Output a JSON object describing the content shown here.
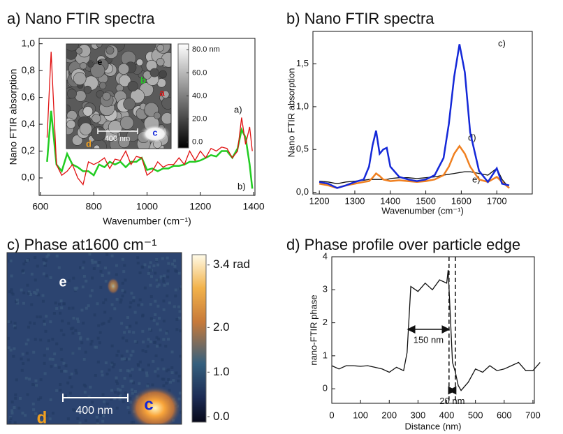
{
  "chart_data": [
    {
      "type": "line",
      "title": "a) Nano FTIR spectra",
      "xlabel": "Wavenumber (cm⁻¹)",
      "ylabel": "Nano FTIR absorption",
      "x": [
        625,
        640,
        660,
        680,
        700,
        720,
        740,
        760,
        780,
        800,
        820,
        840,
        860,
        880,
        900,
        920,
        940,
        960,
        980,
        1000,
        1020,
        1040,
        1060,
        1080,
        1100,
        1120,
        1140,
        1160,
        1180,
        1200,
        1220,
        1240,
        1260,
        1280,
        1300,
        1320,
        1340,
        1355,
        1370,
        1385,
        1395
      ],
      "series": [
        {
          "name": "a)",
          "color": "#e01010",
          "values": [
            0.3,
            0.94,
            0.1,
            0.02,
            0.05,
            0.1,
            0.0,
            -0.05,
            0.12,
            0.1,
            0.12,
            0.15,
            0.07,
            0.14,
            0.13,
            0.2,
            0.1,
            0.16,
            0.15,
            0.02,
            0.05,
            0.12,
            0.08,
            0.1,
            0.1,
            0.15,
            0.1,
            0.2,
            0.13,
            0.2,
            0.15,
            0.22,
            0.2,
            0.23,
            0.22,
            0.15,
            0.2,
            0.45,
            0.25,
            0.38,
            0.2
          ]
        },
        {
          "name": "b)",
          "color": "#22cc22",
          "values": [
            0.12,
            0.5,
            0.1,
            0.05,
            0.18,
            0.1,
            0.08,
            0.05,
            0.05,
            0.02,
            0.1,
            0.08,
            0.12,
            0.1,
            0.12,
            0.08,
            0.12,
            0.12,
            0.15,
            0.06,
            0.07,
            0.05,
            0.07,
            0.07,
            0.09,
            0.09,
            0.1,
            0.12,
            0.12,
            0.13,
            0.15,
            0.17,
            0.16,
            0.2,
            0.2,
            0.15,
            0.22,
            0.36,
            0.3,
            0.1,
            -0.08
          ]
        }
      ],
      "xlim": [
        595,
        1405
      ],
      "xticks": [
        600,
        800,
        1000,
        1200,
        1400
      ],
      "ylim": [
        -0.13,
        1.04
      ],
      "yticks": [
        {
          "value": 0,
          "label": "0,0"
        },
        {
          "value": 0.2,
          "label": "0,2"
        },
        {
          "value": 0.4,
          "label": "0,4"
        },
        {
          "value": 0.6,
          "label": "0,6"
        },
        {
          "value": 0.8,
          "label": "0,8"
        },
        {
          "value": 1.0,
          "label": "1,0"
        }
      ],
      "inset": {
        "clim": [
          -5,
          85
        ],
        "cticks": [
          {
            "value": 80,
            "label": "80.0 nm"
          },
          {
            "value": 60,
            "label": "60.0"
          },
          {
            "value": 40,
            "label": "40.0"
          },
          {
            "value": 20,
            "label": "20.0"
          },
          {
            "value": 0,
            "label": "0.0"
          }
        ],
        "scalebar": "400 nm",
        "labels": [
          "e",
          "b",
          "a",
          "c",
          "d"
        ]
      }
    },
    {
      "type": "line",
      "title": "b) Nano FTIR spectra",
      "xlabel": "Wavenumber (cm⁻¹)",
      "ylabel": "Nano FTIR absorption",
      "x": [
        1200,
        1225,
        1250,
        1275,
        1300,
        1325,
        1340,
        1350,
        1360,
        1370,
        1380,
        1390,
        1400,
        1425,
        1450,
        1475,
        1500,
        1525,
        1550,
        1565,
        1580,
        1595,
        1610,
        1625,
        1650,
        1675,
        1700,
        1715,
        1735
      ],
      "series": [
        {
          "name": "c)",
          "color": "#1428d8",
          "values": [
            0.12,
            0.1,
            0.05,
            0.08,
            0.12,
            0.15,
            0.3,
            0.55,
            0.72,
            0.45,
            0.5,
            0.52,
            0.3,
            0.18,
            0.15,
            0.13,
            0.15,
            0.2,
            0.4,
            0.8,
            1.35,
            1.73,
            1.4,
            0.7,
            0.25,
            0.12,
            0.28,
            0.1,
            0.08
          ]
        },
        {
          "name": "d)",
          "color": "#f08020",
          "values": [
            0.1,
            0.08,
            0.05,
            0.08,
            0.1,
            0.12,
            0.13,
            0.17,
            0.22,
            0.19,
            0.15,
            0.14,
            0.13,
            0.14,
            0.13,
            0.12,
            0.13,
            0.15,
            0.2,
            0.3,
            0.45,
            0.54,
            0.45,
            0.3,
            0.15,
            0.12,
            0.18,
            0.12,
            0.05
          ]
        },
        {
          "name": "e)",
          "color": "#111111",
          "values": [
            0.13,
            0.12,
            0.1,
            0.12,
            0.13,
            0.14,
            0.15,
            0.15,
            0.15,
            0.15,
            0.15,
            0.15,
            0.16,
            0.17,
            0.17,
            0.16,
            0.17,
            0.18,
            0.2,
            0.21,
            0.22,
            0.23,
            0.24,
            0.24,
            0.22,
            0.2,
            0.28,
            0.15,
            0.05
          ]
        }
      ],
      "xlim": [
        1182,
        1800
      ],
      "xticks": [
        1200,
        1300,
        1400,
        1500,
        1600,
        1700
      ],
      "ylim": [
        -0.02,
        1.88
      ],
      "yticks": [
        {
          "value": 0,
          "label": "0,0"
        },
        {
          "value": 0.5,
          "label": "0,5"
        },
        {
          "value": 1.0,
          "label": "1,0"
        },
        {
          "value": 1.5,
          "label": "1,5"
        }
      ]
    },
    {
      "type": "image",
      "title": "c) Phase at1600 cm⁻¹",
      "clim": [
        -0.12,
        3.63
      ],
      "cticks": [
        {
          "value": 3.4,
          "label": "3.4 rad"
        },
        {
          "value": 2,
          "label": "2.0"
        },
        {
          "value": 1,
          "label": "1.0"
        },
        {
          "value": 0,
          "label": "0.0"
        }
      ],
      "scalebar": "400 nm",
      "labels": [
        "e",
        "c",
        "d"
      ]
    },
    {
      "type": "line",
      "title": "d) Phase profile over particle edge",
      "xlabel": "Distance (nm)",
      "ylabel": "nano-FTIR phase",
      "x": [
        0,
        25,
        50,
        75,
        100,
        125,
        150,
        175,
        200,
        225,
        250,
        262,
        275,
        300,
        325,
        350,
        375,
        400,
        405,
        420,
        430,
        440,
        450,
        475,
        500,
        525,
        550,
        575,
        600,
        625,
        650,
        675,
        700,
        725
      ],
      "values": [
        0.7,
        0.6,
        0.7,
        0.7,
        0.68,
        0.7,
        0.65,
        0.6,
        0.5,
        0.65,
        0.55,
        1.1,
        3.1,
        2.95,
        3.2,
        3.0,
        3.3,
        3.2,
        3.6,
        0.8,
        0.5,
        0.1,
        -0.05,
        0.2,
        0.6,
        0.5,
        0.7,
        0.55,
        0.6,
        0.7,
        0.8,
        0.55,
        0.55,
        0.8
      ],
      "color": "#111111",
      "xlim": [
        0,
        705
      ],
      "xticks": [
        0,
        100,
        200,
        300,
        400,
        500,
        600,
        700
      ],
      "ylim": [
        -0.44,
        4
      ],
      "yticks": [
        0,
        1,
        2,
        3,
        4
      ],
      "vlines": [
        408,
        430
      ],
      "annotations": [
        {
          "text": "150 nm",
          "x": [
            265,
            408
          ],
          "y": 1.8
        },
        {
          "text": "20 nm",
          "x": [
            408,
            430
          ],
          "y": -0.05
        }
      ]
    }
  ]
}
